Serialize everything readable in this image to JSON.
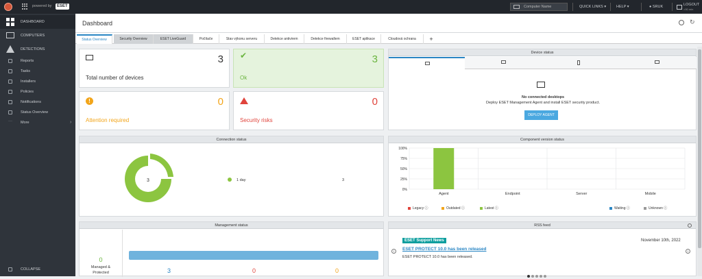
{
  "topbar": {
    "powered_by": "powered by",
    "brand": "ESET",
    "search_placeholder": "Computer Name",
    "quick_links": "QUICK LINKS ▾",
    "help": "HELP ▾",
    "user": "SRUK",
    "logout": "LOGOUT",
    "logout_sub": ">90 min"
  },
  "sidebar": {
    "items": [
      {
        "label": "DASHBOARD",
        "icon": "dashboard-icon"
      },
      {
        "label": "COMPUTERS",
        "icon": "computers-icon"
      },
      {
        "label": "DETECTIONS",
        "icon": "warning-icon"
      }
    ],
    "subitems": [
      {
        "label": "Reports"
      },
      {
        "label": "Tasks"
      },
      {
        "label": "Installers"
      },
      {
        "label": "Policies"
      },
      {
        "label": "Notifications"
      },
      {
        "label": "Status Overview"
      },
      {
        "label": "More"
      }
    ],
    "collapse": "COLLAPSE"
  },
  "header": {
    "title": "Dashboard"
  },
  "tabs": [
    {
      "label": "Status Overview"
    },
    {
      "label": "Security Overview"
    },
    {
      "label": "ESET LiveGuard"
    },
    {
      "label": "Počítače"
    },
    {
      "label": "Stav výkonu serveru"
    },
    {
      "label": "Detekce antivirem"
    },
    {
      "label": "Detekce firewallem"
    },
    {
      "label": "ESET aplikace"
    },
    {
      "label": "Cloudová ochrana"
    }
  ],
  "cards": {
    "total": {
      "value": "3",
      "label": "Total number of devices"
    },
    "ok": {
      "value": "3",
      "label": "Ok"
    },
    "attention": {
      "value": "0",
      "label": "Attention required"
    },
    "risks": {
      "value": "0",
      "label": "Security risks"
    }
  },
  "device_status": {
    "title": "Device status",
    "empty_title": "No connected desktops",
    "empty_text": "Deploy ESET Management Agent and install ESET security product.",
    "button": "DEPLOY AGENT"
  },
  "connection_status": {
    "title": "Connection status",
    "center": "3",
    "legend_label": "1 day",
    "legend_value": "3"
  },
  "component_status": {
    "title": "Component version status",
    "legend": [
      {
        "label": "Legacy",
        "color": "#e0443c"
      },
      {
        "label": "Outdated",
        "color": "#f2a51a"
      },
      {
        "label": "Latest",
        "color": "#8cc540"
      },
      {
        "label": "Waiting",
        "color": "#2a86c4"
      },
      {
        "label": "Unknown",
        "color": "#999999"
      }
    ]
  },
  "management_status": {
    "title": "Management status",
    "value": "0",
    "label_line1": "Managed &",
    "label_line2": "Protected",
    "cols": [
      "3",
      "0",
      "0"
    ]
  },
  "rss": {
    "title": "RSS feed",
    "badge": "ESET Support News",
    "date": "November 10th, 2022",
    "headline": "ESET PROTECT 10.0 has been released",
    "text": "ESET PROTECT 10.0 has been released."
  },
  "chart_data": {
    "type": "bar",
    "title": "Component version status",
    "categories": [
      "Agent",
      "Endpoint",
      "Server",
      "Mobile"
    ],
    "y_ticks": [
      "100%",
      "75%",
      "50%",
      "25%",
      "0%"
    ],
    "ylim": [
      0,
      100
    ],
    "series": [
      {
        "name": "Latest",
        "values": [
          100,
          0,
          0,
          0
        ],
        "color": "#8cc540"
      }
    ]
  }
}
